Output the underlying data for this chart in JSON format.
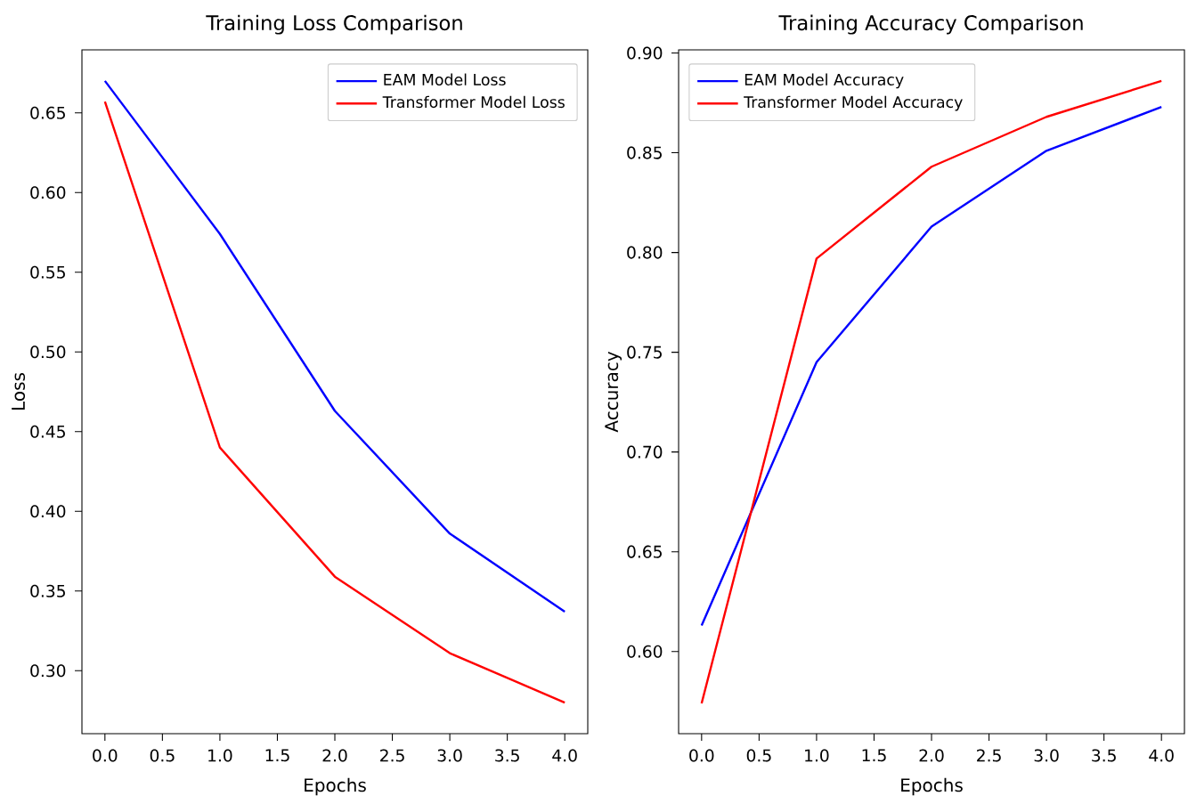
{
  "chart_data": [
    {
      "type": "line",
      "title": "Training Loss Comparison",
      "xlabel": "Epochs",
      "ylabel": "Loss",
      "x": [
        0,
        1,
        2,
        3,
        4
      ],
      "series": [
        {
          "name": "EAM Model Loss",
          "color": "#0000ff",
          "values": [
            0.67,
            0.574,
            0.463,
            0.386,
            0.337
          ]
        },
        {
          "name": "Transformer Model Loss",
          "color": "#ff0000",
          "values": [
            0.657,
            0.44,
            0.359,
            0.311,
            0.28
          ]
        }
      ],
      "xlim": [
        -0.2,
        4.2
      ],
      "ylim": [
        0.2605,
        0.6895
      ],
      "xticks": [
        {
          "value": 0,
          "label": "0.0"
        },
        {
          "value": 0.5,
          "label": "0.5"
        },
        {
          "value": 1,
          "label": "1.0"
        },
        {
          "value": 1.5,
          "label": "1.5"
        },
        {
          "value": 2,
          "label": "2.0"
        },
        {
          "value": 2.5,
          "label": "2.5"
        },
        {
          "value": 3,
          "label": "3.0"
        },
        {
          "value": 3.5,
          "label": "3.5"
        },
        {
          "value": 4,
          "label": "4.0"
        }
      ],
      "yticks": [
        {
          "value": 0.3,
          "label": "0.30"
        },
        {
          "value": 0.35,
          "label": "0.35"
        },
        {
          "value": 0.4,
          "label": "0.40"
        },
        {
          "value": 0.45,
          "label": "0.45"
        },
        {
          "value": 0.5,
          "label": "0.50"
        },
        {
          "value": 0.55,
          "label": "0.55"
        },
        {
          "value": 0.6,
          "label": "0.60"
        },
        {
          "value": 0.65,
          "label": "0.65"
        }
      ],
      "legend": "top right"
    },
    {
      "type": "line",
      "title": "Training Accuracy Comparison",
      "xlabel": "Epochs",
      "ylabel": "Accuracy",
      "x": [
        0,
        1,
        2,
        3,
        4
      ],
      "series": [
        {
          "name": "EAM Model Accuracy",
          "color": "#0000ff",
          "values": [
            0.613,
            0.745,
            0.813,
            0.851,
            0.873
          ]
        },
        {
          "name": "Transformer Model Accuracy",
          "color": "#ff0000",
          "values": [
            0.574,
            0.797,
            0.843,
            0.868,
            0.886
          ]
        }
      ],
      "xlim": [
        -0.2,
        4.2
      ],
      "ylim": [
        0.5588,
        0.9016
      ],
      "xticks": [
        {
          "value": 0,
          "label": "0.0"
        },
        {
          "value": 0.5,
          "label": "0.5"
        },
        {
          "value": 1,
          "label": "1.0"
        },
        {
          "value": 1.5,
          "label": "1.5"
        },
        {
          "value": 2,
          "label": "2.0"
        },
        {
          "value": 2.5,
          "label": "2.5"
        },
        {
          "value": 3,
          "label": "3.0"
        },
        {
          "value": 3.5,
          "label": "3.5"
        },
        {
          "value": 4,
          "label": "4.0"
        }
      ],
      "yticks": [
        {
          "value": 0.6,
          "label": "0.60"
        },
        {
          "value": 0.65,
          "label": "0.65"
        },
        {
          "value": 0.7,
          "label": "0.70"
        },
        {
          "value": 0.75,
          "label": "0.75"
        },
        {
          "value": 0.8,
          "label": "0.80"
        },
        {
          "value": 0.85,
          "label": "0.85"
        },
        {
          "value": 0.9,
          "label": "0.90"
        }
      ],
      "legend": "top left"
    }
  ]
}
